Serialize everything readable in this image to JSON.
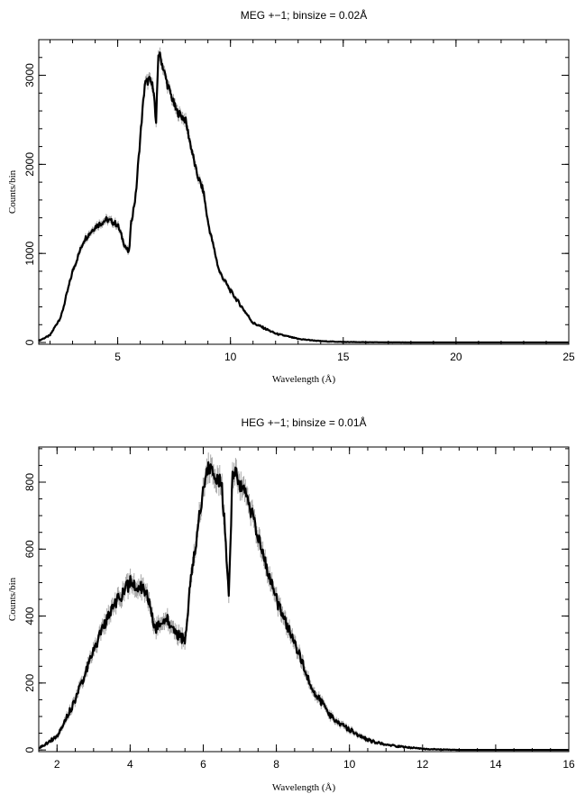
{
  "chart_data": [
    {
      "type": "line",
      "title": "MEG +−1; binsize = 0.02Å",
      "xlabel": "Wavelength (Å)",
      "ylabel": "Counts/bin",
      "xlim": [
        1.5,
        25
      ],
      "ylim": [
        -20,
        3400
      ],
      "xticks": [
        5,
        10,
        15,
        20,
        25
      ],
      "yticks": [
        0,
        1000,
        2000,
        3000
      ],
      "grid": false,
      "series": [
        {
          "x": [
            1.5,
            2.0,
            2.5,
            3.0,
            3.5,
            4.0,
            4.5,
            4.8,
            5.0,
            5.3,
            5.5,
            5.6,
            5.8,
            6.0,
            6.2,
            6.4,
            6.6,
            6.7,
            6.8,
            6.9,
            7.2,
            7.6,
            8.0,
            8.5,
            8.8,
            9.0,
            9.5,
            10.0,
            10.5,
            11.0,
            12.0,
            13.0,
            14.0,
            15.0,
            16.0,
            18.0,
            20.0,
            25.0
          ],
          "y": [
            20,
            80,
            300,
            800,
            1150,
            1300,
            1380,
            1350,
            1320,
            1100,
            1000,
            1350,
            1650,
            2300,
            2900,
            2950,
            2850,
            2400,
            3250,
            3200,
            2900,
            2600,
            2500,
            1900,
            1700,
            1350,
            800,
            580,
            400,
            220,
            100,
            40,
            15,
            6,
            3,
            0,
            0,
            0
          ]
        }
      ]
    },
    {
      "type": "line",
      "title": "HEG +−1; binsize = 0.01Å",
      "xlabel": "Wavelength (Å)",
      "ylabel": "Counts/bin",
      "xlim": [
        1.5,
        16
      ],
      "ylim": [
        -5,
        905
      ],
      "xticks": [
        2,
        4,
        6,
        8,
        10,
        12,
        14,
        16
      ],
      "yticks": [
        0,
        200,
        400,
        600,
        800
      ],
      "grid": false,
      "series": [
        {
          "x": [
            1.5,
            2.0,
            2.5,
            3.0,
            3.5,
            4.0,
            4.3,
            4.5,
            4.7,
            5.0,
            5.2,
            5.5,
            5.7,
            5.9,
            6.1,
            6.3,
            6.5,
            6.6,
            6.7,
            6.8,
            6.9,
            7.1,
            7.3,
            7.6,
            8.0,
            8.5,
            9.0,
            9.5,
            10.0,
            10.5,
            11.0,
            12.0,
            13.0,
            16.0
          ],
          "y": [
            5,
            40,
            150,
            300,
            420,
            500,
            490,
            450,
            360,
            400,
            350,
            330,
            550,
            700,
            850,
            830,
            800,
            650,
            450,
            830,
            820,
            780,
            720,
            600,
            450,
            320,
            180,
            100,
            60,
            30,
            15,
            3,
            0,
            0
          ]
        }
      ]
    }
  ]
}
